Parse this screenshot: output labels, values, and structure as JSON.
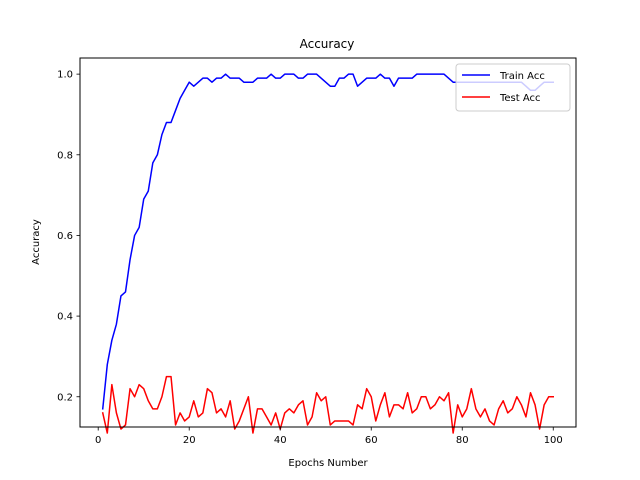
{
  "chart_data": {
    "type": "line",
    "title": "Accuracy",
    "xlabel": "Epochs Number",
    "ylabel": "Accuracy",
    "xlim": [
      -4,
      105
    ],
    "ylim": [
      0.125,
      1.04
    ],
    "xticks": [
      0,
      20,
      40,
      60,
      80,
      100
    ],
    "yticks": [
      0.2,
      0.4,
      0.6,
      0.8,
      1.0
    ],
    "ytick_labels": [
      "0.2",
      "0.4",
      "0.6",
      "0.8",
      "1.0"
    ],
    "legend_position": "top-right",
    "x": [
      1,
      2,
      3,
      4,
      5,
      6,
      7,
      8,
      9,
      10,
      11,
      12,
      13,
      14,
      15,
      16,
      17,
      18,
      19,
      20,
      21,
      22,
      23,
      24,
      25,
      26,
      27,
      28,
      29,
      30,
      31,
      32,
      33,
      34,
      35,
      36,
      37,
      38,
      39,
      40,
      41,
      42,
      43,
      44,
      45,
      46,
      47,
      48,
      49,
      50,
      51,
      52,
      53,
      54,
      55,
      56,
      57,
      58,
      59,
      60,
      61,
      62,
      63,
      64,
      65,
      66,
      67,
      68,
      69,
      70,
      71,
      72,
      73,
      74,
      75,
      76,
      77,
      78,
      79,
      80,
      81,
      82,
      83,
      84,
      85,
      86,
      87,
      88,
      89,
      90,
      91,
      92,
      93,
      94,
      95,
      96,
      97,
      98,
      99,
      100
    ],
    "series": [
      {
        "name": "Train Acc",
        "color": "#0000ff",
        "values": [
          0.17,
          0.28,
          0.34,
          0.38,
          0.45,
          0.46,
          0.54,
          0.6,
          0.62,
          0.69,
          0.71,
          0.78,
          0.8,
          0.85,
          0.88,
          0.88,
          0.91,
          0.94,
          0.96,
          0.98,
          0.97,
          0.98,
          0.99,
          0.99,
          0.98,
          0.99,
          0.99,
          1.0,
          0.99,
          0.99,
          0.99,
          0.98,
          0.98,
          0.98,
          0.99,
          0.99,
          0.99,
          1.0,
          0.99,
          0.99,
          1.0,
          1.0,
          1.0,
          0.99,
          0.99,
          1.0,
          1.0,
          1.0,
          0.99,
          0.98,
          0.97,
          0.97,
          0.99,
          0.99,
          1.0,
          1.0,
          0.97,
          0.98,
          0.99,
          0.99,
          0.99,
          1.0,
          0.99,
          0.99,
          0.97,
          0.99,
          0.99,
          0.99,
          0.99,
          1.0,
          1.0,
          1.0,
          1.0,
          1.0,
          1.0,
          1.0,
          0.99,
          0.98,
          0.98,
          0.98,
          0.98,
          0.98,
          0.98,
          0.98,
          0.98,
          0.98,
          0.98,
          0.98,
          0.98,
          0.98,
          0.98,
          0.98,
          0.98,
          0.97,
          0.96,
          0.96,
          0.97,
          0.98,
          0.98,
          0.98
        ]
      },
      {
        "name": "Test Acc",
        "color": "#ff0000",
        "values": [
          0.16,
          0.11,
          0.23,
          0.16,
          0.12,
          0.13,
          0.22,
          0.2,
          0.23,
          0.22,
          0.19,
          0.17,
          0.17,
          0.2,
          0.25,
          0.25,
          0.13,
          0.16,
          0.14,
          0.15,
          0.19,
          0.15,
          0.16,
          0.22,
          0.21,
          0.16,
          0.17,
          0.15,
          0.19,
          0.12,
          0.14,
          0.17,
          0.2,
          0.11,
          0.17,
          0.17,
          0.15,
          0.13,
          0.16,
          0.12,
          0.16,
          0.17,
          0.16,
          0.18,
          0.19,
          0.13,
          0.15,
          0.21,
          0.19,
          0.2,
          0.13,
          0.14,
          0.14,
          0.14,
          0.14,
          0.13,
          0.18,
          0.17,
          0.22,
          0.2,
          0.14,
          0.18,
          0.21,
          0.15,
          0.18,
          0.18,
          0.17,
          0.21,
          0.16,
          0.17,
          0.2,
          0.2,
          0.17,
          0.18,
          0.2,
          0.19,
          0.21,
          0.11,
          0.18,
          0.15,
          0.17,
          0.22,
          0.17,
          0.15,
          0.17,
          0.14,
          0.13,
          0.17,
          0.19,
          0.16,
          0.17,
          0.2,
          0.18,
          0.15,
          0.21,
          0.18,
          0.12,
          0.18,
          0.2,
          0.2
        ]
      }
    ]
  }
}
